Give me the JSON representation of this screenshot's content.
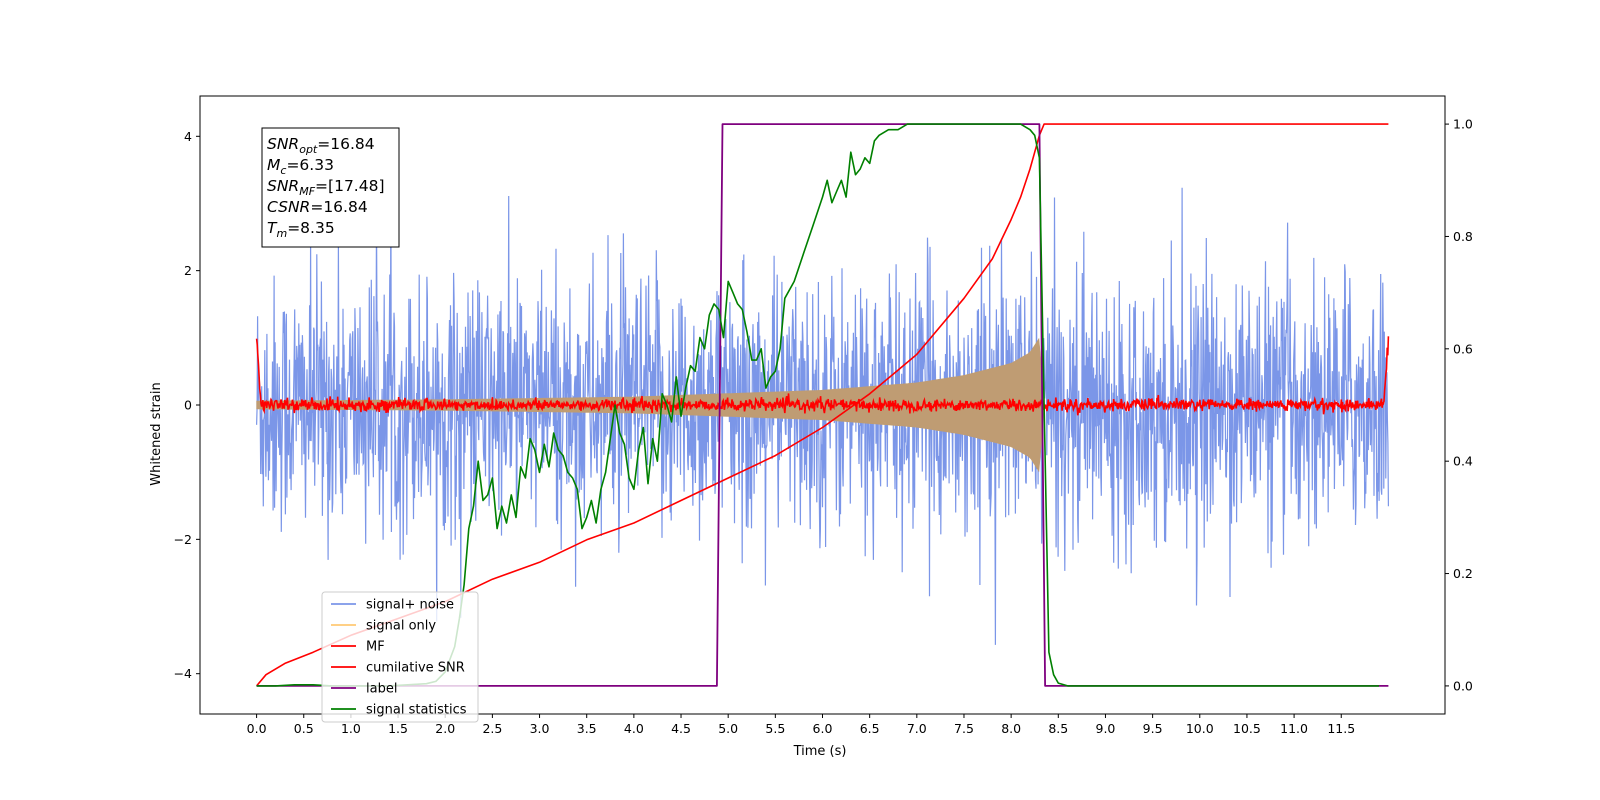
{
  "chart_data": {
    "type": "line",
    "title": "",
    "xlabel": "Time (s)",
    "ylabel": "Whitened strain",
    "xlim": [
      -0.6,
      12.6
    ],
    "ylim": [
      -4.6,
      4.6
    ],
    "y2lim": [
      -0.05,
      1.05
    ],
    "x_ticks": [
      0.0,
      0.5,
      1.0,
      1.5,
      2.0,
      2.5,
      3.0,
      3.5,
      4.0,
      4.5,
      5.0,
      5.5,
      6.0,
      6.5,
      7.0,
      7.5,
      8.0,
      8.5,
      9.0,
      9.5,
      10.0,
      10.5,
      11.0,
      11.5
    ],
    "x_tick_labels": [
      "0.0",
      "0.5",
      "1.0",
      "1.5",
      "2.0",
      "2.5",
      "3.0",
      "3.5",
      "4.0",
      "4.5",
      "5.0",
      "5.5",
      "6.0",
      "6.5",
      "7.0",
      "7.5",
      "8.0",
      "8.5",
      "9.0",
      "9.5",
      "10.0",
      "10.5",
      "11.0",
      "11.5"
    ],
    "y_ticks": [
      -4,
      -2,
      0,
      2,
      4
    ],
    "y_tick_labels": [
      "−4",
      "−2",
      "0",
      "2",
      "4"
    ],
    "y2_ticks": [
      0.0,
      0.2,
      0.4,
      0.6,
      0.8,
      1.0
    ],
    "y2_tick_labels": [
      "0.0",
      "0.2",
      "0.4",
      "0.6",
      "0.8",
      "1.0"
    ],
    "grid": false,
    "legend_placement": "lower-left",
    "annotation": {
      "lines": [
        {
          "var": "SNR",
          "sub": "opt",
          "value": "=16.84"
        },
        {
          "var": "M",
          "sub": "c",
          "value": "=6.33"
        },
        {
          "var": "SNR",
          "sub": "MF",
          "value": "=[17.48]"
        },
        {
          "var": "CSNR",
          "sub": "",
          "value": "=16.84"
        },
        {
          "var": "T",
          "sub": "m",
          "value": "=8.35"
        }
      ]
    },
    "series": [
      {
        "name": "signal+ noise",
        "color": "#7b96e8",
        "axis": "left",
        "kind": "noise",
        "x_start": 0.0,
        "x_end": 12.0,
        "amplitude_sd": 1.0
      },
      {
        "name": "signal only",
        "color": "#ffc974",
        "fill": "#bf9c73",
        "axis": "left",
        "kind": "chirp_envelope",
        "x_start": 0.0,
        "x_merger": 8.35,
        "envelope": [
          [
            0.0,
            0.06
          ],
          [
            2.0,
            0.08
          ],
          [
            4.0,
            0.12
          ],
          [
            6.0,
            0.22
          ],
          [
            7.0,
            0.33
          ],
          [
            7.5,
            0.44
          ],
          [
            8.0,
            0.62
          ],
          [
            8.2,
            0.78
          ],
          [
            8.3,
            1.0
          ],
          [
            8.35,
            0.0
          ]
        ]
      },
      {
        "name": "MF",
        "color": "#ff0000",
        "axis": "left",
        "kind": "noise",
        "x_start": 0.0,
        "x_end": 12.0,
        "amplitude_sd": 0.045,
        "edges": [
          [
            0.0,
            1.0
          ],
          [
            0.05,
            0.0
          ],
          [
            11.95,
            0.0
          ],
          [
            12.0,
            0.97
          ]
        ]
      },
      {
        "name": "cumilative SNR",
        "color": "#ff0000",
        "axis": "right",
        "x": [
          0.0,
          0.1,
          0.3,
          0.6,
          1.0,
          1.5,
          2.0,
          2.5,
          3.0,
          3.5,
          4.0,
          4.5,
          5.0,
          5.5,
          6.0,
          6.5,
          7.0,
          7.5,
          7.8,
          8.0,
          8.1,
          8.2,
          8.25,
          8.3,
          8.35,
          12.0
        ],
        "values": [
          0.0,
          0.02,
          0.04,
          0.06,
          0.09,
          0.12,
          0.15,
          0.19,
          0.22,
          0.26,
          0.29,
          0.33,
          0.37,
          0.41,
          0.46,
          0.52,
          0.59,
          0.69,
          0.76,
          0.83,
          0.87,
          0.92,
          0.95,
          0.98,
          1.0,
          1.0
        ]
      },
      {
        "name": "label",
        "color": "#7f007f",
        "axis": "right",
        "x": [
          0.0,
          4.88,
          4.94,
          8.3,
          8.36,
          12.0
        ],
        "values": [
          0.0,
          0.0,
          1.0,
          1.0,
          0.0,
          0.0
        ]
      },
      {
        "name": "signal statistics",
        "color": "#008000",
        "axis": "right",
        "x": [
          0.0,
          0.2,
          0.4,
          0.6,
          0.8,
          1.0,
          1.2,
          1.4,
          1.6,
          1.8,
          1.9,
          2.0,
          2.1,
          2.15,
          2.2,
          2.25,
          2.3,
          2.35,
          2.4,
          2.45,
          2.5,
          2.55,
          2.6,
          2.65,
          2.7,
          2.75,
          2.8,
          2.85,
          2.9,
          2.95,
          3.0,
          3.05,
          3.1,
          3.15,
          3.2,
          3.25,
          3.3,
          3.35,
          3.4,
          3.45,
          3.5,
          3.55,
          3.6,
          3.65,
          3.7,
          3.75,
          3.8,
          3.85,
          3.9,
          3.95,
          4.0,
          4.05,
          4.1,
          4.15,
          4.2,
          4.25,
          4.3,
          4.35,
          4.4,
          4.45,
          4.5,
          4.55,
          4.6,
          4.65,
          4.7,
          4.75,
          4.8,
          4.85,
          4.9,
          4.95,
          5.0,
          5.05,
          5.1,
          5.15,
          5.2,
          5.25,
          5.3,
          5.35,
          5.4,
          5.45,
          5.5,
          5.55,
          5.6,
          5.7,
          5.8,
          5.9,
          6.0,
          6.05,
          6.1,
          6.15,
          6.2,
          6.25,
          6.3,
          6.35,
          6.4,
          6.45,
          6.5,
          6.55,
          6.6,
          6.7,
          6.8,
          6.9,
          7.0,
          7.2,
          7.4,
          7.6,
          7.8,
          7.9,
          8.0,
          8.1,
          8.2,
          8.25,
          8.3,
          8.35,
          8.4,
          8.45,
          8.5,
          8.6,
          8.8,
          9.0,
          10.0,
          11.0,
          11.9
        ],
        "values": [
          0.0,
          0.0,
          0.002,
          0.002,
          0.0,
          0.0,
          0.0,
          0.0,
          0.002,
          0.004,
          0.008,
          0.025,
          0.07,
          0.12,
          0.18,
          0.28,
          0.32,
          0.4,
          0.33,
          0.34,
          0.37,
          0.28,
          0.32,
          0.29,
          0.34,
          0.3,
          0.39,
          0.37,
          0.44,
          0.42,
          0.38,
          0.43,
          0.39,
          0.45,
          0.42,
          0.41,
          0.38,
          0.37,
          0.35,
          0.28,
          0.3,
          0.33,
          0.29,
          0.35,
          0.38,
          0.44,
          0.5,
          0.45,
          0.43,
          0.37,
          0.35,
          0.42,
          0.46,
          0.36,
          0.44,
          0.4,
          0.52,
          0.5,
          0.47,
          0.55,
          0.48,
          0.53,
          0.57,
          0.56,
          0.62,
          0.6,
          0.66,
          0.68,
          0.67,
          0.62,
          0.72,
          0.7,
          0.68,
          0.67,
          0.63,
          0.58,
          0.58,
          0.6,
          0.53,
          0.55,
          0.56,
          0.6,
          0.69,
          0.72,
          0.77,
          0.82,
          0.87,
          0.9,
          0.86,
          0.88,
          0.9,
          0.87,
          0.95,
          0.91,
          0.92,
          0.94,
          0.93,
          0.97,
          0.98,
          0.99,
          0.99,
          1.0,
          1.0,
          1.0,
          1.0,
          1.0,
          1.0,
          1.0,
          1.0,
          1.0,
          0.99,
          0.98,
          0.94,
          0.5,
          0.06,
          0.02,
          0.005,
          0.0,
          0.0,
          0.0,
          0.0,
          0.0,
          0.0
        ]
      }
    ]
  }
}
